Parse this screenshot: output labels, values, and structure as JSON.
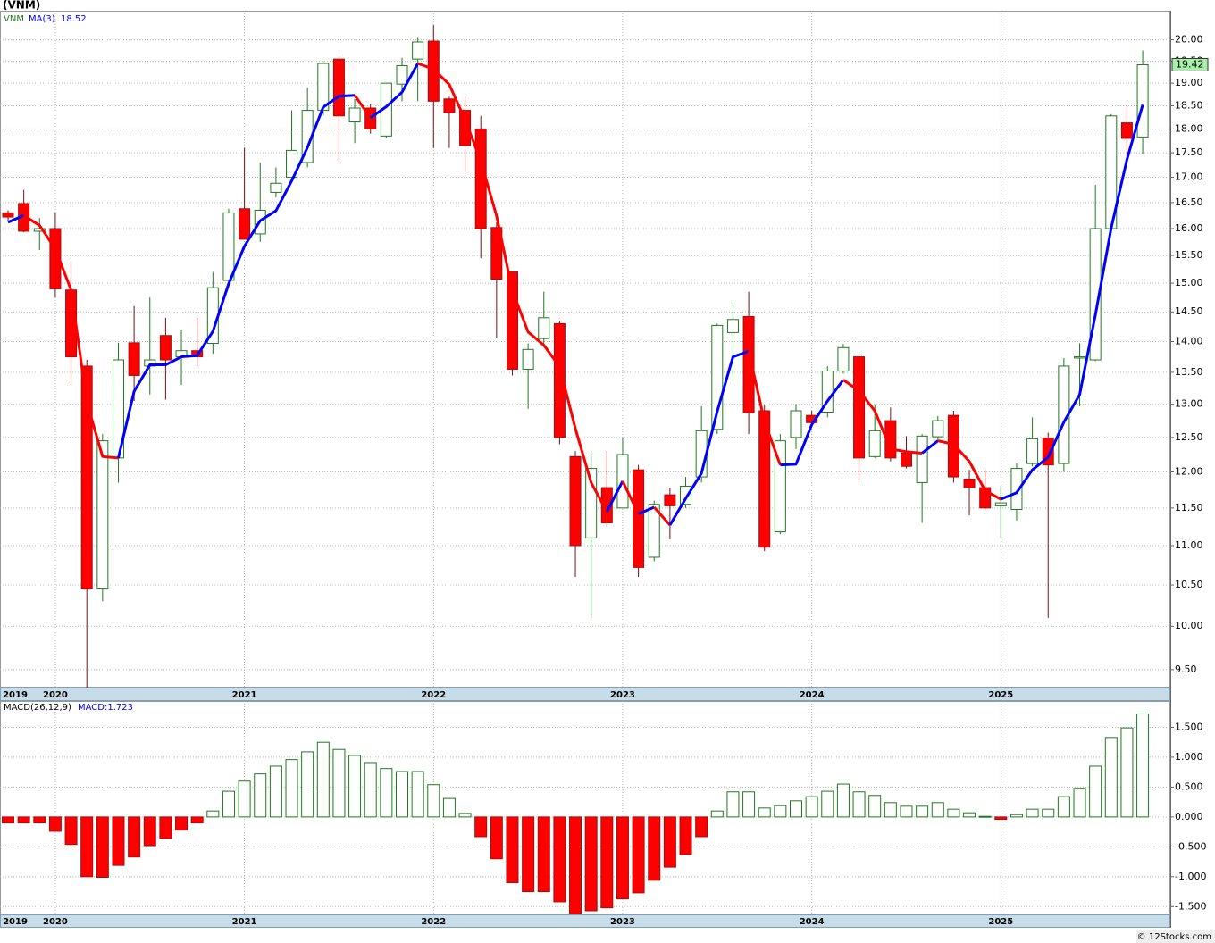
{
  "chart_data": [
    {
      "type": "candlestick",
      "title": "(VNM)",
      "categories": [
        "2019",
        null,
        null,
        "2020",
        null,
        null,
        null,
        null,
        null,
        null,
        null,
        null,
        null,
        null,
        null,
        "2021",
        null,
        null,
        null,
        null,
        null,
        null,
        null,
        null,
        null,
        null,
        null,
        "2022",
        null,
        null,
        null,
        null,
        null,
        null,
        null,
        null,
        null,
        null,
        null,
        "2023",
        null,
        null,
        null,
        null,
        null,
        null,
        null,
        null,
        null,
        null,
        null,
        "2024",
        null,
        null,
        null,
        null,
        null,
        null,
        null,
        null,
        null,
        null,
        null,
        "2025",
        null,
        null,
        null,
        null,
        null,
        null,
        null,
        null,
        null
      ],
      "series": [
        {
          "name": "VNM",
          "color": "#1f7a1f",
          "down_color": "#ff0000",
          "open": [
            16.3,
            16.48,
            15.95,
            16.0,
            14.88,
            13.6,
            10.45,
            12.2,
            13.98,
            13.6,
            14.1,
            13.75,
            13.85,
            13.97,
            15.05,
            16.38,
            15.9,
            16.7,
            17.0,
            17.3,
            18.4,
            19.55,
            18.15,
            18.45,
            17.85,
            18.98,
            19.55,
            19.97,
            18.65,
            18.4,
            18.0,
            16.02,
            15.2,
            13.55,
            14.05,
            14.3,
            12.22,
            11.1,
            11.78,
            11.5,
            12.03,
            10.85,
            11.68,
            11.55,
            11.93,
            12.62,
            14.15,
            14.42,
            12.9,
            11.18,
            12.5,
            12.83,
            12.88,
            13.52,
            13.75,
            12.22,
            12.75,
            12.27,
            11.85,
            12.51,
            12.83,
            11.9,
            11.78,
            11.53,
            11.48,
            12.12,
            12.49,
            12.12,
            13.73,
            13.7,
            16.0,
            18.13,
            17.83
          ],
          "high": [
            16.35,
            16.75,
            16.2,
            16.3,
            15.4,
            13.7,
            12.55,
            13.98,
            14.6,
            14.75,
            14.4,
            14.2,
            14.4,
            15.2,
            16.38,
            17.6,
            17.3,
            17.2,
            18.4,
            18.9,
            19.5,
            19.6,
            18.65,
            18.55,
            19.0,
            19.58,
            20.07,
            20.35,
            18.7,
            18.7,
            18.28,
            16.12,
            15.2,
            13.97,
            14.85,
            14.35,
            12.3,
            12.3,
            12.3,
            12.5,
            12.1,
            11.6,
            11.78,
            11.93,
            12.97,
            14.3,
            14.67,
            14.85,
            12.98,
            12.55,
            13.0,
            12.9,
            13.6,
            13.96,
            13.82,
            13.0,
            12.95,
            12.52,
            12.55,
            12.82,
            12.9,
            12.03,
            12.03,
            11.8,
            12.12,
            12.8,
            12.57,
            13.73,
            13.97,
            16.85,
            18.32,
            18.5,
            19.75
          ],
          "low": [
            16.15,
            15.93,
            15.6,
            14.75,
            13.3,
            9.2,
            10.3,
            11.85,
            13.05,
            13.15,
            13.07,
            13.3,
            13.6,
            13.8,
            15.05,
            15.8,
            15.75,
            16.6,
            16.95,
            17.2,
            18.28,
            17.3,
            17.7,
            17.9,
            17.8,
            18.6,
            18.6,
            17.6,
            17.6,
            17.05,
            15.45,
            14.05,
            13.45,
            12.93,
            13.97,
            12.4,
            10.6,
            10.1,
            11.25,
            11.5,
            10.6,
            10.8,
            11.08,
            11.5,
            11.85,
            12.55,
            13.35,
            12.55,
            10.93,
            11.15,
            12.33,
            12.7,
            12.8,
            13.48,
            11.85,
            12.2,
            12.15,
            12.05,
            11.3,
            12.45,
            11.85,
            11.4,
            11.47,
            11.1,
            11.33,
            12.08,
            10.1,
            12.0,
            12.97,
            13.68,
            15.93,
            17.28,
            17.48
          ],
          "close": [
            16.22,
            15.95,
            16.0,
            14.9,
            13.75,
            10.45,
            12.45,
            13.7,
            13.45,
            13.7,
            13.7,
            13.85,
            13.75,
            14.92,
            16.3,
            15.8,
            16.35,
            16.88,
            17.55,
            18.4,
            19.45,
            18.28,
            18.45,
            18.0,
            19.0,
            19.4,
            19.95,
            18.6,
            18.35,
            17.65,
            16.0,
            15.07,
            13.55,
            13.87,
            14.4,
            12.5,
            11.0,
            12.05,
            11.3,
            12.25,
            10.72,
            11.55,
            11.53,
            11.8,
            12.6,
            14.27,
            14.37,
            12.87,
            10.98,
            12.45,
            12.9,
            12.72,
            13.52,
            13.9,
            12.2,
            12.6,
            12.2,
            12.08,
            12.52,
            12.75,
            11.93,
            11.78,
            11.5,
            11.57,
            12.05,
            12.48,
            12.1,
            13.6,
            13.75,
            16.0,
            18.28,
            17.8,
            19.42
          ],
          "price_box_color": "#a8f0a8"
        },
        {
          "name": "MA(3)",
          "color": "#0000ff",
          "down_color": "#ff0000",
          "values": [
            16.12,
            16.25,
            16.06,
            15.62,
            14.88,
            13.03,
            12.22,
            12.2,
            13.2,
            13.62,
            13.62,
            13.75,
            13.77,
            14.17,
            14.99,
            15.67,
            16.15,
            16.34,
            16.93,
            17.61,
            18.47,
            18.71,
            18.73,
            18.24,
            18.48,
            18.8,
            19.45,
            19.32,
            18.97,
            18.2,
            17.33,
            16.24,
            14.87,
            14.16,
            13.94,
            13.59,
            12.63,
            11.85,
            11.45,
            11.87,
            11.42,
            11.51,
            11.27,
            11.63,
            11.98,
            12.89,
            13.75,
            13.84,
            12.74,
            12.1,
            12.11,
            12.69,
            13.05,
            13.38,
            13.21,
            12.9,
            12.33,
            12.29,
            12.27,
            12.45,
            12.4,
            12.15,
            11.74,
            11.62,
            11.71,
            12.03,
            12.21,
            12.73,
            13.15,
            14.45,
            16.01,
            17.36,
            18.52
          ]
        }
      ],
      "log_scale": true,
      "ylim": [
        9.3,
        20.7
      ],
      "yticks": [
        {
          "value": 9.5,
          "label": "9.50"
        },
        {
          "value": 10,
          "label": "10.00"
        },
        {
          "value": 10.5,
          "label": "10.50"
        },
        {
          "value": 11,
          "label": "11.00"
        },
        {
          "value": 11.5,
          "label": "11.50"
        },
        {
          "value": 12,
          "label": "12.00"
        },
        {
          "value": 12.5,
          "label": "12.50"
        },
        {
          "value": 13,
          "label": "13.00"
        },
        {
          "value": 13.5,
          "label": "13.50"
        },
        {
          "value": 14,
          "label": "14.00"
        },
        {
          "value": 14.5,
          "label": "14.50"
        },
        {
          "value": 15,
          "label": "15.00"
        },
        {
          "value": 15.5,
          "label": "15.50"
        },
        {
          "value": 16,
          "label": "16.00"
        },
        {
          "value": 16.5,
          "label": "16.50"
        },
        {
          "value": 17,
          "label": "17.00"
        },
        {
          "value": 17.5,
          "label": "17.50"
        },
        {
          "value": 18,
          "label": "18.00"
        },
        {
          "value": 18.5,
          "label": "18.50"
        },
        {
          "value": 19,
          "label": "19.00"
        },
        {
          "value": 19.5,
          "label": "19.50"
        },
        {
          "value": 20,
          "label": "20.00"
        }
      ],
      "grid": true
    },
    {
      "type": "bar",
      "title": "MACD(26,12,9)",
      "value_text": "MACD:1.723",
      "value_text_color": "#0000ff",
      "categories": [
        "2019",
        null,
        null,
        "2020",
        null,
        null,
        null,
        null,
        null,
        null,
        null,
        null,
        null,
        null,
        null,
        "2021",
        null,
        null,
        null,
        null,
        null,
        null,
        null,
        null,
        null,
        null,
        null,
        "2022",
        null,
        null,
        null,
        null,
        null,
        null,
        null,
        null,
        null,
        null,
        null,
        "2023",
        null,
        null,
        null,
        null,
        null,
        null,
        null,
        null,
        null,
        null,
        null,
        "2024",
        null,
        null,
        null,
        null,
        null,
        null,
        null,
        null,
        null,
        null,
        null,
        "2025",
        null,
        null,
        null,
        null,
        null,
        null,
        null,
        null,
        null
      ],
      "color": "#1f7a1f",
      "down_color": "#ff0000",
      "values": [
        -0.1,
        -0.1,
        -0.1,
        -0.24,
        -0.46,
        -1.0,
        -1.01,
        -0.81,
        -0.67,
        -0.48,
        -0.36,
        -0.22,
        -0.1,
        0.1,
        0.43,
        0.6,
        0.72,
        0.85,
        0.96,
        1.09,
        1.25,
        1.13,
        1.03,
        0.91,
        0.81,
        0.76,
        0.76,
        0.54,
        0.31,
        0.06,
        -0.33,
        -0.7,
        -1.1,
        -1.25,
        -1.25,
        -1.42,
        -1.62,
        -1.57,
        -1.52,
        -1.37,
        -1.27,
        -1.06,
        -0.84,
        -0.63,
        -0.33,
        0.1,
        0.42,
        0.42,
        0.15,
        0.19,
        0.27,
        0.34,
        0.43,
        0.55,
        0.42,
        0.36,
        0.24,
        0.18,
        0.18,
        0.24,
        0.13,
        0.07,
        0.01,
        -0.04,
        0.04,
        0.13,
        0.13,
        0.34,
        0.48,
        0.85,
        1.33,
        1.49,
        1.723
      ],
      "ylim": [
        -1.63,
        1.94
      ],
      "yticks": [
        {
          "value": -1.5,
          "label": "-1.500"
        },
        {
          "value": -1,
          "label": "-1.000"
        },
        {
          "value": -0.5,
          "label": "-0.500"
        },
        {
          "value": 0,
          "label": "0.000"
        },
        {
          "value": 0.5,
          "label": "0.500"
        },
        {
          "value": 1,
          "label": "1.000"
        },
        {
          "value": 1.5,
          "label": "1.500"
        }
      ],
      "grid": true
    }
  ],
  "footer": "© 12Stocks.com"
}
